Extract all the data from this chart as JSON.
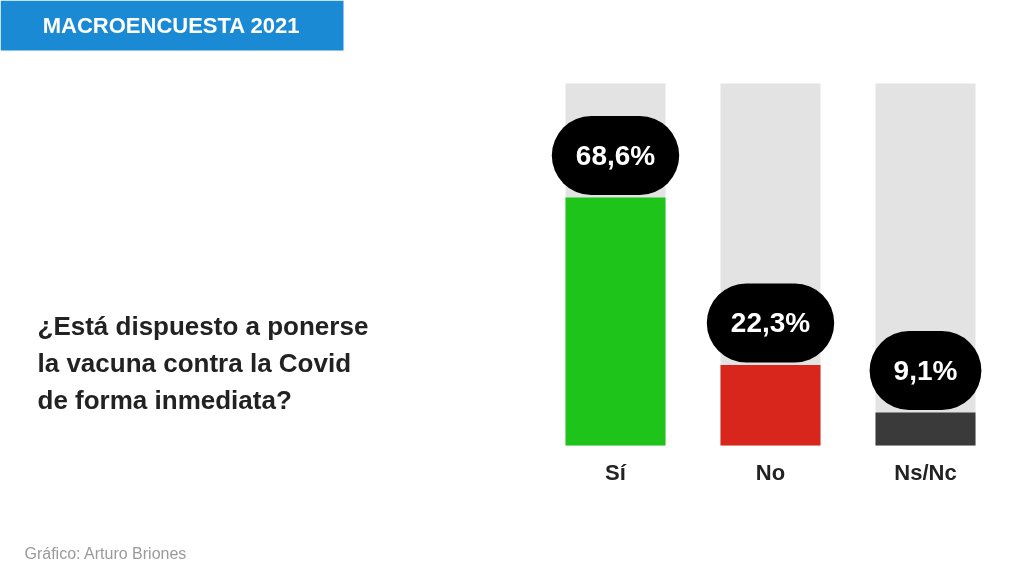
{
  "chart_data": {
    "type": "bar",
    "title": "MACROENCUESTA 2021",
    "subtitle": "¿Está dispuesto a ponerse\nla vacuna contra la Covid\nde forma inmediata?",
    "categories": [
      "Sí",
      "No",
      "Ns/Nc"
    ],
    "series": [
      {
        "colors": [
          "#1ec41a",
          "#d9261c",
          "#3a3a3a"
        ],
        "values": [
          68.6,
          22.3,
          9.1
        ],
        "value_labels": [
          "68,6%",
          "22,3%",
          "9,1%"
        ]
      }
    ],
    "annotations": [
      "Gráfico: Arturo Briones"
    ]
  }
}
